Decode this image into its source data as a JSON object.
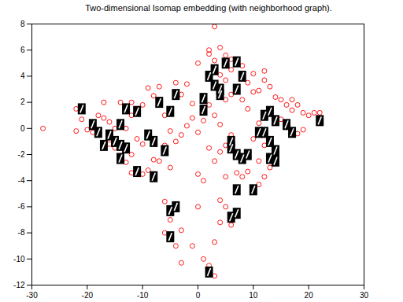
{
  "chart_data": {
    "type": "scatter",
    "title": "Two-dimensional Isomap embedding (with neighborhood graph).",
    "xlim": [
      -30,
      30
    ],
    "xticks": [
      -30,
      -20,
      -10,
      0,
      10,
      20,
      30
    ],
    "ylim": [
      -12,
      8
    ],
    "yticks": [
      -12,
      -10,
      -8,
      -6,
      -4,
      -2,
      0,
      2,
      4,
      6,
      8
    ],
    "grid": false,
    "series": [
      {
        "color": "#ff0000",
        "marker": "circle",
        "x": [
          -28,
          -22,
          -21,
          -20,
          -19,
          -22,
          -18,
          -17,
          -16,
          -15,
          -14,
          -12,
          -12,
          -10,
          -9,
          -8,
          -7,
          -6,
          -4,
          -3,
          -2,
          -1,
          0,
          -1,
          -2,
          -3,
          -4,
          -5,
          -6,
          -7,
          -8,
          -9,
          -10,
          -11,
          -12,
          -13,
          -15,
          -16,
          -17,
          -18,
          -12,
          -13,
          -10,
          -5,
          -6,
          -5,
          -6,
          -4,
          -3,
          -3,
          -1,
          0,
          0,
          1,
          0,
          1,
          2,
          2,
          3,
          2,
          3,
          4,
          4,
          5,
          6,
          6,
          5,
          5,
          6,
          3,
          8,
          9,
          10,
          8,
          9,
          10,
          11,
          12,
          12,
          13,
          14,
          15,
          16,
          17,
          18,
          19,
          20,
          21,
          22,
          19,
          18,
          17,
          15,
          11,
          10,
          12,
          11,
          13,
          12,
          11,
          9,
          8,
          7,
          5,
          4,
          5,
          6,
          4,
          3,
          2,
          1,
          3,
          6,
          5,
          3,
          4,
          2,
          4
        ],
        "y": [
          0,
          1.5,
          0.7,
          -0.1,
          -0.3,
          -0.2,
          1,
          2,
          0.5,
          0,
          2,
          1,
          2,
          1.8,
          3.1,
          2.5,
          3.2,
          1,
          3.5,
          2.6,
          3.4,
          1.9,
          5,
          0.8,
          0.2,
          -0.5,
          -1,
          -0.2,
          -1.3,
          -2.5,
          -2.4,
          -3.2,
          -1.2,
          -0.8,
          -2,
          0,
          -1.5,
          -1.2,
          0.8,
          -0.3,
          -3.4,
          -2.6,
          -3.5,
          -3,
          -5.6,
          -7,
          -8,
          -9,
          -10.3,
          -7.8,
          -9,
          -6,
          -3.5,
          -4,
          -0.3,
          0.6,
          1.8,
          5.7,
          7.8,
          6,
          5.2,
          4.1,
          6.2,
          5.6,
          4.5,
          5.3,
          3.7,
          2.2,
          2.6,
          1,
          4.8,
          3.5,
          4.2,
          2.2,
          1.5,
          2.8,
          2.9,
          4.4,
          3.7,
          3.2,
          2.4,
          2.2,
          1.8,
          2.2,
          1.8,
          1.2,
          1,
          1.2,
          1.2,
          -0.1,
          -0.4,
          1.4,
          0.7,
          0.4,
          -0.8,
          -1.3,
          -2.5,
          -3,
          -3.7,
          -4.3,
          -3.3,
          -3.7,
          -3.4,
          -3.7,
          -5.5,
          -6,
          -7.4,
          -7.2,
          -8.7,
          -10.5,
          -10,
          -11.3,
          -0.5,
          -1.3,
          -2.5,
          -1.8,
          -1.5,
          0.3
        ]
      },
      {
        "color": "#000000",
        "marker": "square",
        "x": [
          -21,
          -19,
          -18,
          -16,
          -15,
          -17,
          -14,
          -13,
          -14,
          -13,
          -14,
          -11,
          -9,
          -8,
          -6,
          -11,
          -8,
          -7,
          -5,
          -4,
          -5,
          -4,
          -5,
          1,
          1,
          2,
          3,
          4,
          3,
          4,
          5,
          7,
          8,
          7,
          6,
          7,
          8,
          9,
          7,
          10,
          6,
          7,
          2,
          11,
          12,
          13,
          14,
          16,
          17,
          13,
          14,
          13,
          14,
          22,
          12,
          6
        ],
        "y": [
          1.5,
          0.3,
          -0.3,
          -0.5,
          -1,
          -1.3,
          0.3,
          1.5,
          -1.3,
          -1.5,
          -2.3,
          1.3,
          -0.5,
          -1,
          -1.7,
          -3.3,
          -3.7,
          2,
          1.3,
          2.6,
          -6.3,
          -6,
          -8.3,
          2.3,
          1.4,
          4,
          4.5,
          3,
          3.3,
          2.6,
          5,
          5.1,
          4,
          3,
          -1.5,
          -2,
          -2.3,
          -2,
          -4.7,
          -4.7,
          -6.8,
          -6.5,
          -11,
          -0.3,
          1,
          1.3,
          0.6,
          0.3,
          -0.3,
          -1,
          -1.7,
          -2.3,
          -2.5,
          0.6,
          -0.3,
          -1
        ]
      }
    ]
  }
}
